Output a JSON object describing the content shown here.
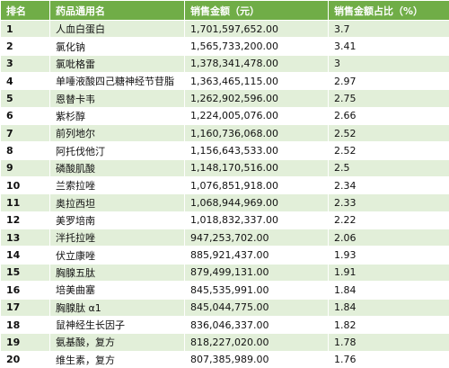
{
  "table": {
    "header": [
      "排名",
      "药品通用名",
      "销售金额（元）",
      "销售金额占比（%）"
    ],
    "rows": [
      [
        "1",
        "人血白蛋白",
        "1,701,597,652.00",
        "3.7"
      ],
      [
        "2",
        "氯化钠",
        "1,565,733,200.00",
        "3.41"
      ],
      [
        "3",
        "氯吡格雷",
        "1,378,341,478.00",
        "3"
      ],
      [
        "4",
        "单唾液酸四己糖神经节苷脂",
        "1,363,465,115.00",
        "2.97"
      ],
      [
        "5",
        "恩替卡韦",
        "1,262,902,596.00",
        "2.75"
      ],
      [
        "6",
        "紫杉醇",
        "1,224,005,076.00",
        "2.66"
      ],
      [
        "7",
        "前列地尔",
        "1,160,736,068.00",
        "2.52"
      ],
      [
        "8",
        "阿托伐他汀",
        "1,156,643,533.00",
        "2.52"
      ],
      [
        "9",
        "磷酸肌酸",
        "1,148,170,516.00",
        "2.5"
      ],
      [
        "10",
        "兰索拉唑",
        "1,076,851,918.00",
        "2.34"
      ],
      [
        "11",
        "奥拉西坦",
        "1,068,944,969.00",
        "2.33"
      ],
      [
        "12",
        "美罗培南",
        "1,018,832,337.00",
        "2.22"
      ],
      [
        "13",
        "泮托拉唑",
        "947,253,702.00",
        "2.06"
      ],
      [
        "14",
        "伏立康唑",
        "885,921,437.00",
        "1.93"
      ],
      [
        "15",
        "胸腺五肽",
        "879,499,131.00",
        "1.91"
      ],
      [
        "16",
        "培美曲塞",
        "845,535,991.00",
        "1.84"
      ],
      [
        "17",
        "胸腺肽 α1",
        "845,044,775.00",
        "1.84"
      ],
      [
        "18",
        "鼠神经生长因子",
        "836,046,337.00",
        "1.82"
      ],
      [
        "19",
        "氨基酸，复方",
        "818,227,020.00",
        "1.78"
      ],
      [
        "20",
        "维生素，复方",
        "807,385,989.00",
        "1.76"
      ]
    ]
  }
}
